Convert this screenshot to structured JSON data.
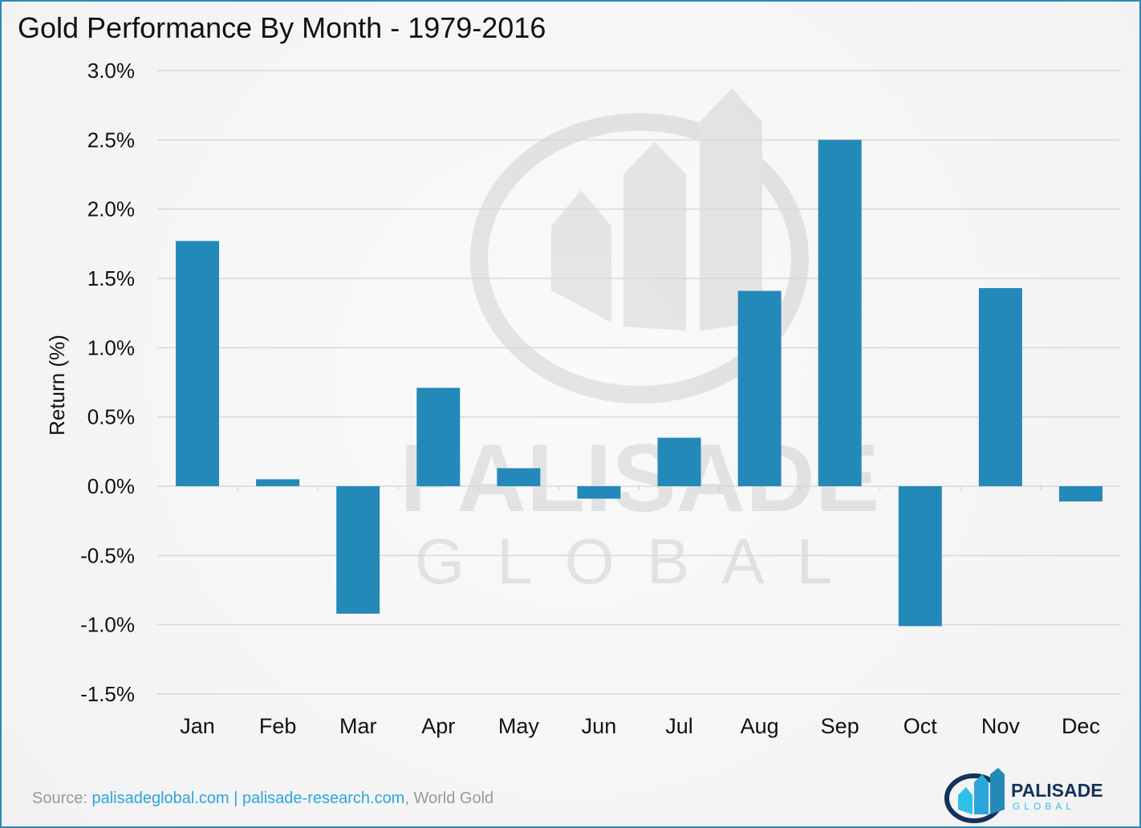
{
  "chart_data": {
    "type": "bar",
    "title": "Gold Performance By Month - 1979-2016",
    "xlabel": "",
    "ylabel": "Return (%)",
    "ylim": [
      -1.5,
      3.0
    ],
    "yticks": [
      3.0,
      2.5,
      2.0,
      1.5,
      1.0,
      0.5,
      0.0,
      -0.5,
      -1.0,
      -1.5
    ],
    "ytick_labels": [
      "3.0%",
      "2.5%",
      "2.0%",
      "1.5%",
      "1.0%",
      "0.5%",
      "0.0%",
      "-0.5%",
      "-1.0%",
      "-1.5%"
    ],
    "categories": [
      "Jan",
      "Feb",
      "Mar",
      "Apr",
      "May",
      "Jun",
      "Jul",
      "Aug",
      "Sep",
      "Oct",
      "Nov",
      "Dec"
    ],
    "values": [
      1.77,
      0.05,
      -0.92,
      0.71,
      0.13,
      -0.09,
      0.35,
      1.41,
      2.5,
      -1.01,
      1.43,
      -0.11
    ],
    "grid": true,
    "bar_color": "#2389b8"
  },
  "footer": {
    "prefix": "Source: ",
    "link1": "palisadeglobal.com",
    "sep": " | ",
    "link2": "palisade-research.com",
    "suffix": ", World Gold"
  },
  "logo": {
    "line1": "PALISADE",
    "line2": "GLOBAL"
  },
  "watermark": {
    "line1": "PALISADE",
    "line2": "GLOBAL"
  }
}
